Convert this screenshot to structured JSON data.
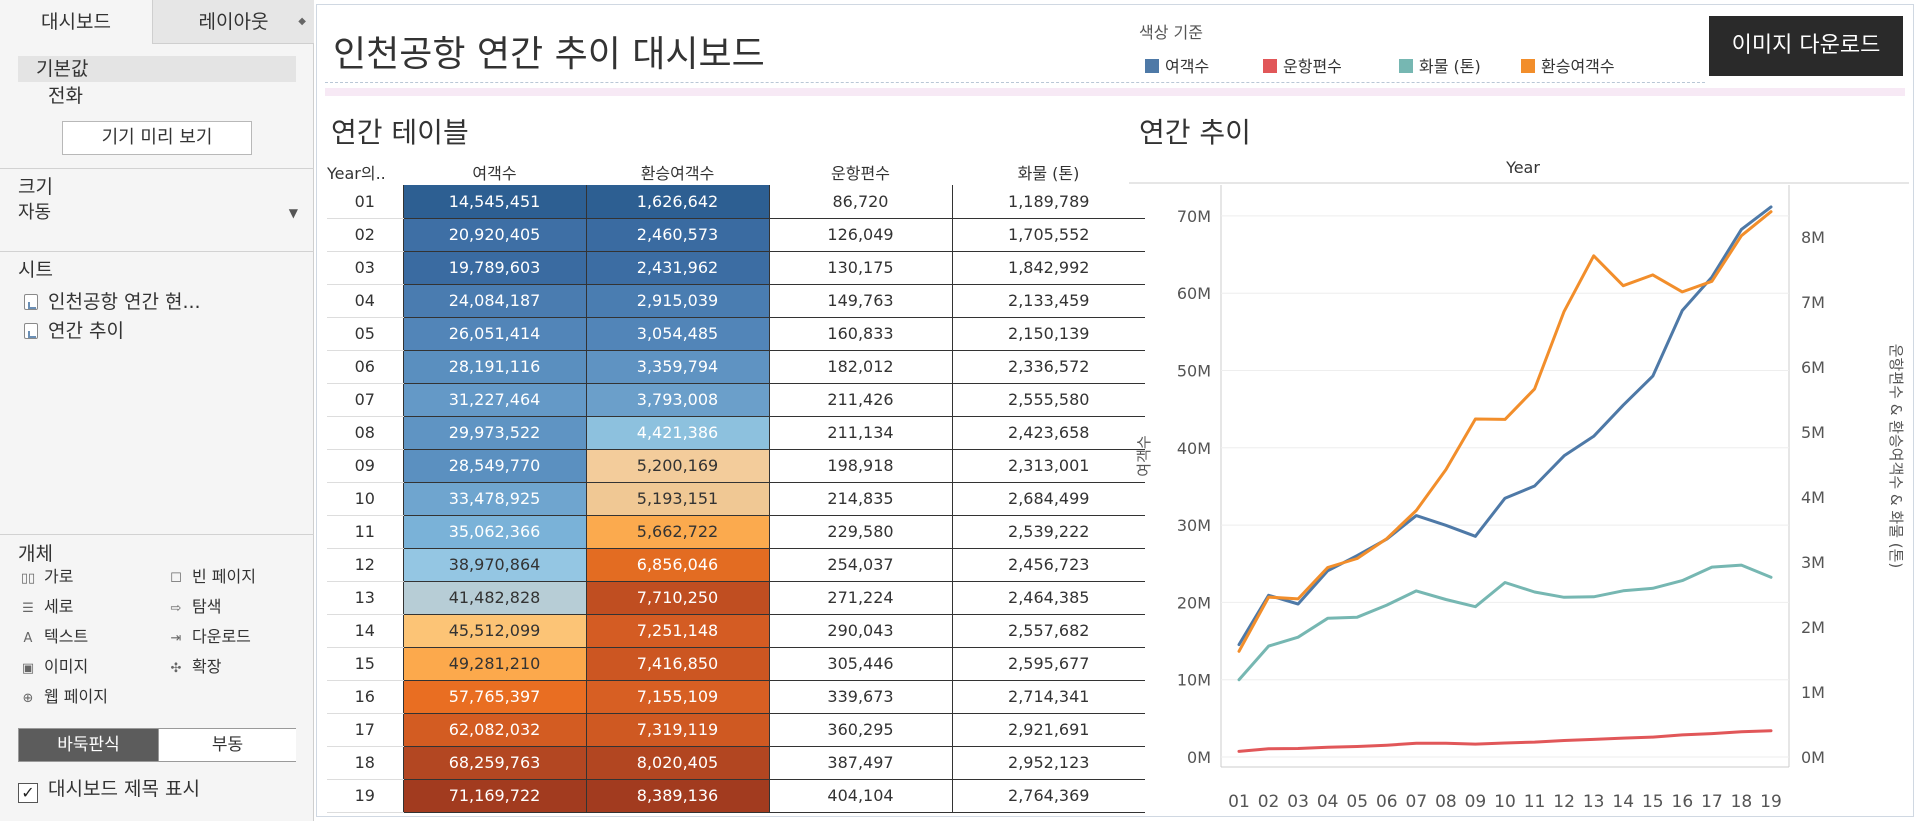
{
  "sidebar": {
    "tabs": {
      "dashboard": "대시보드",
      "layout": "레이아웃"
    },
    "devices": {
      "default": "기본값",
      "phone": "전화"
    },
    "preview_button": "기기 미리 보기",
    "size": {
      "title": "크기",
      "value": "자동"
    },
    "sheets": {
      "title": "시트",
      "items": [
        "인천공항 연간 현...",
        "연간 추이"
      ]
    },
    "objects": {
      "title": "개체",
      "items": [
        "가로",
        "빈 페이지",
        "세로",
        "탐색",
        "텍스트",
        "다운로드",
        "이미지",
        "확장",
        "웹 페이지"
      ]
    },
    "toggle": {
      "tiled": "바둑판식",
      "floating": "부동"
    },
    "show_title": "대시보드 제목 표시"
  },
  "dashboard": {
    "title": "인천공항 연간 추이 대시보드",
    "legend": {
      "title": "색상 기준",
      "items": [
        {
          "label": "여객수",
          "color": "#4e79a7"
        },
        {
          "label": "운항편수",
          "color": "#e15759"
        },
        {
          "label": "화물 (톤)",
          "color": "#76b7b2"
        },
        {
          "label": "환승여객수",
          "color": "#f28e2b"
        }
      ]
    },
    "download_button": "이미지 다운로드"
  },
  "table": {
    "title": "연간 테이블",
    "headers": [
      "Year의..",
      "여객수",
      "환승여객수",
      "운항편수",
      "화물 (톤)"
    ],
    "rows": [
      {
        "year": "01",
        "passengers": "14,545,451",
        "transfer": "1,626,642",
        "flights": "86,720",
        "cargo": "1,189,789",
        "p_bg": "#2d5f92",
        "t_bg": "#2d5f92",
        "p_fg": "#ffffff",
        "t_fg": "#ffffff"
      },
      {
        "year": "02",
        "passengers": "20,920,405",
        "transfer": "2,460,573",
        "flights": "126,049",
        "cargo": "1,705,552",
        "p_bg": "#3e6fa5",
        "t_bg": "#3a6ba1",
        "p_fg": "#ffffff",
        "t_fg": "#ffffff"
      },
      {
        "year": "03",
        "passengers": "19,789,603",
        "transfer": "2,431,962",
        "flights": "130,175",
        "cargo": "1,842,992",
        "p_bg": "#3a6ba1",
        "t_bg": "#3c6da3",
        "p_fg": "#ffffff",
        "t_fg": "#ffffff"
      },
      {
        "year": "04",
        "passengers": "24,084,187",
        "transfer": "2,915,039",
        "flights": "149,763",
        "cargo": "2,133,459",
        "p_bg": "#4a7cb0",
        "t_bg": "#4a7db1",
        "p_fg": "#ffffff",
        "t_fg": "#ffffff"
      },
      {
        "year": "05",
        "passengers": "26,051,414",
        "transfer": "3,054,485",
        "flights": "160,833",
        "cargo": "2,150,139",
        "p_bg": "#5285b8",
        "t_bg": "#5285b8",
        "p_fg": "#ffffff",
        "t_fg": "#ffffff"
      },
      {
        "year": "06",
        "passengers": "28,191,116",
        "transfer": "3,359,794",
        "flights": "182,012",
        "cargo": "2,336,572",
        "p_bg": "#5a8fbf",
        "t_bg": "#5f93c2",
        "p_fg": "#ffffff",
        "t_fg": "#ffffff"
      },
      {
        "year": "07",
        "passengers": "31,227,464",
        "transfer": "3,793,008",
        "flights": "211,426",
        "cargo": "2,555,580",
        "p_bg": "#6499c7",
        "t_bg": "#6b9fca",
        "p_fg": "#ffffff",
        "t_fg": "#ffffff"
      },
      {
        "year": "08",
        "passengers": "29,973,522",
        "transfer": "4,421,386",
        "flights": "211,134",
        "cargo": "2,423,658",
        "p_bg": "#5f94c3",
        "t_bg": "#8dc1de",
        "p_fg": "#ffffff",
        "t_fg": "#ffffff"
      },
      {
        "year": "09",
        "passengers": "28,549,770",
        "transfer": "5,200,169",
        "flights": "198,918",
        "cargo": "2,313,001",
        "p_bg": "#5b90c0",
        "t_bg": "#f3cc9b",
        "p_fg": "#ffffff",
        "t_fg": "#333333"
      },
      {
        "year": "10",
        "passengers": "33,478,925",
        "transfer": "5,193,151",
        "flights": "214,835",
        "cargo": "2,684,499",
        "p_bg": "#6fa5cf",
        "t_bg": "#f0c894",
        "p_fg": "#ffffff",
        "t_fg": "#333333"
      },
      {
        "year": "11",
        "passengers": "35,062,366",
        "transfer": "5,662,722",
        "flights": "229,580",
        "cargo": "2,539,222",
        "p_bg": "#7ab2d8",
        "t_bg": "#fbaa4e",
        "p_fg": "#ffffff",
        "t_fg": "#333333"
      },
      {
        "year": "12",
        "passengers": "38,970,864",
        "transfer": "6,856,046",
        "flights": "254,037",
        "cargo": "2,456,723",
        "p_bg": "#94c6e3",
        "t_bg": "#e36c22",
        "p_fg": "#333333",
        "t_fg": "#ffffff"
      },
      {
        "year": "13",
        "passengers": "41,482,828",
        "transfer": "7,710,250",
        "flights": "271,224",
        "cargo": "2,464,385",
        "p_bg": "#b7cdd6",
        "t_bg": "#c04e21",
        "p_fg": "#333333",
        "t_fg": "#ffffff"
      },
      {
        "year": "14",
        "passengers": "45,512,099",
        "transfer": "7,251,148",
        "flights": "290,043",
        "cargo": "2,557,682",
        "p_bg": "#fcc476",
        "t_bg": "#d45c23",
        "p_fg": "#333333",
        "t_fg": "#ffffff"
      },
      {
        "year": "15",
        "passengers": "49,281,210",
        "transfer": "7,416,850",
        "flights": "305,446",
        "cargo": "2,595,677",
        "p_bg": "#fca94c",
        "t_bg": "#cc5622",
        "p_fg": "#333333",
        "t_fg": "#ffffff"
      },
      {
        "year": "16",
        "passengers": "57,765,397",
        "transfer": "7,155,109",
        "flights": "339,673",
        "cargo": "2,714,341",
        "p_bg": "#e96e22",
        "t_bg": "#d75f23",
        "p_fg": "#ffffff",
        "t_fg": "#ffffff"
      },
      {
        "year": "17",
        "passengers": "62,082,032",
        "transfer": "7,319,119",
        "flights": "360,295",
        "cargo": "2,921,691",
        "p_bg": "#d35c22",
        "t_bg": "#cf5922",
        "p_fg": "#ffffff",
        "t_fg": "#ffffff"
      },
      {
        "year": "18",
        "passengers": "68,259,763",
        "transfer": "8,020,405",
        "flights": "387,497",
        "cargo": "2,952,123",
        "p_bg": "#b34722",
        "t_bg": "#b24621",
        "p_fg": "#ffffff",
        "t_fg": "#ffffff"
      },
      {
        "year": "19",
        "passengers": "71,169,722",
        "transfer": "8,389,136",
        "flights": "404,104",
        "cargo": "2,764,369",
        "p_bg": "#a23b1f",
        "t_bg": "#a23b1f",
        "p_fg": "#ffffff",
        "t_fg": "#ffffff"
      }
    ]
  },
  "chart_data": {
    "type": "line",
    "title": "연간 추이",
    "xlabel": "Year",
    "ylabel_left": "여객수",
    "ylabel_right": "운항편수 & 환승여객수 & 화물 (톤)",
    "categories": [
      "01",
      "02",
      "03",
      "04",
      "05",
      "06",
      "07",
      "08",
      "09",
      "10",
      "11",
      "12",
      "13",
      "14",
      "15",
      "16",
      "17",
      "18",
      "19"
    ],
    "y_left": {
      "min": 0,
      "max": 74000000,
      "ticks": [
        0,
        10000000,
        20000000,
        30000000,
        40000000,
        50000000,
        60000000,
        70000000
      ],
      "tick_labels": [
        "0M",
        "10M",
        "20M",
        "30M",
        "40M",
        "50M",
        "60M",
        "70M"
      ]
    },
    "y_right": {
      "min": 0,
      "max": 8800000,
      "ticks": [
        0,
        1000000,
        2000000,
        3000000,
        4000000,
        5000000,
        6000000,
        7000000,
        8000000
      ],
      "tick_labels": [
        "0M",
        "1M",
        "2M",
        "3M",
        "4M",
        "5M",
        "6M",
        "7M",
        "8M"
      ]
    },
    "series": [
      {
        "name": "여객수",
        "axis": "left",
        "color": "#4e79a7",
        "values": [
          14545451,
          20920405,
          19789603,
          24084187,
          26051414,
          28191116,
          31227464,
          29973522,
          28549770,
          33478925,
          35062366,
          38970864,
          41482828,
          45512099,
          49281210,
          57765397,
          62082032,
          68259763,
          71169722
        ]
      },
      {
        "name": "운항편수",
        "axis": "right",
        "color": "#e15759",
        "values": [
          86720,
          126049,
          130175,
          149763,
          160833,
          182012,
          211426,
          211134,
          198918,
          214835,
          229580,
          254037,
          271224,
          290043,
          305446,
          339673,
          360295,
          387497,
          404104
        ]
      },
      {
        "name": "화물 (톤)",
        "axis": "right",
        "color": "#76b7b2",
        "values": [
          1189789,
          1705552,
          1842992,
          2133459,
          2150139,
          2336572,
          2555580,
          2423658,
          2313001,
          2684499,
          2539222,
          2456723,
          2464385,
          2557682,
          2595677,
          2714341,
          2921691,
          2952123,
          2764369
        ]
      },
      {
        "name": "환승여객수",
        "axis": "right",
        "color": "#f28e2b",
        "values": [
          1626642,
          2460573,
          2431962,
          2915039,
          3054485,
          3359794,
          3793008,
          4421386,
          5200169,
          5193151,
          5662722,
          6856046,
          7710250,
          7251148,
          7416850,
          7155109,
          7319119,
          8020405,
          8389136
        ]
      }
    ]
  }
}
